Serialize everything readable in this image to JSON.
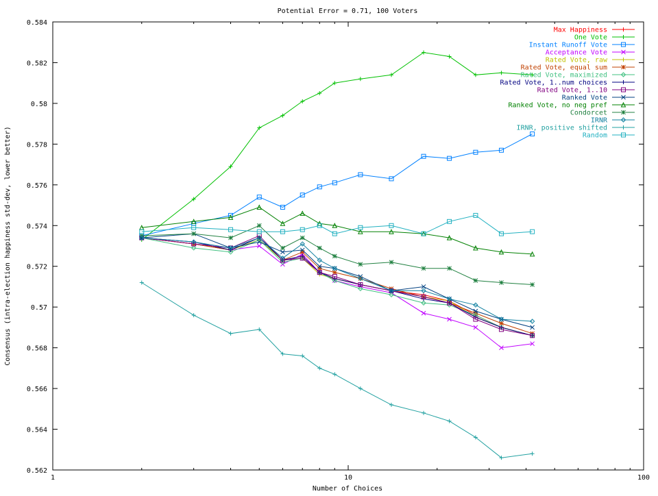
{
  "chart_data": {
    "type": "line",
    "title": "Potential Error = 0.71, 100 Voters",
    "xlabel": "Number of Choices",
    "ylabel": "Consensus (intra-election happiness std-dev, lower better)",
    "xscale": "log",
    "xlim": [
      1,
      100
    ],
    "ylim": [
      0.562,
      0.584
    ],
    "x_ticks": [
      1,
      10,
      100
    ],
    "y_ticks": [
      0.562,
      0.564,
      0.566,
      0.568,
      0.57,
      0.572,
      0.574,
      0.576,
      0.578,
      0.58,
      0.582,
      0.584
    ],
    "y_tick_labels": [
      "0.562",
      "0.564",
      "0.566",
      "0.568",
      "0.57",
      "0.572",
      "0.574",
      "0.576",
      "0.578",
      "0.58",
      "0.582",
      "0.584"
    ],
    "grid": false,
    "legend_position": "top-right",
    "x": [
      2,
      3,
      4,
      5,
      6,
      7,
      8,
      9,
      11,
      14,
      18,
      22,
      27,
      33,
      42
    ],
    "series": [
      {
        "name": "Max Happiness",
        "color": "#ff0000",
        "marker": "plus",
        "values": [
          0.5734,
          0.5731,
          0.5728,
          0.5734,
          0.5723,
          0.5725,
          0.5717,
          0.5714,
          0.5711,
          0.5708,
          0.5706,
          0.5703,
          0.5696,
          0.569,
          0.5686
        ]
      },
      {
        "name": "One Vote",
        "color": "#00c000",
        "marker": "plus",
        "values": [
          0.5733,
          0.5753,
          0.5769,
          0.5788,
          0.5794,
          0.5801,
          0.5805,
          0.581,
          0.5812,
          0.5814,
          0.5825,
          0.5823,
          0.5814,
          0.5815,
          0.5814
        ]
      },
      {
        "name": "Instant Runoff Vote",
        "color": "#0080ff",
        "marker": "square",
        "values": [
          0.5735,
          0.5741,
          0.5745,
          0.5754,
          0.5749,
          0.5755,
          0.5759,
          0.5761,
          0.5765,
          0.5763,
          0.5774,
          0.5773,
          0.5776,
          0.5777,
          0.5785
        ]
      },
      {
        "name": "Acceptance Vote",
        "color": "#c000ff",
        "marker": "x",
        "values": [
          0.5734,
          0.5731,
          0.5728,
          0.573,
          0.5721,
          0.5726,
          0.5717,
          0.5713,
          0.571,
          0.5707,
          0.5697,
          0.5694,
          0.569,
          0.568,
          0.5682
        ]
      },
      {
        "name": "Rated Vote, raw",
        "color": "#c0c000",
        "marker": "plus",
        "values": [
          0.5734,
          0.5731,
          0.5728,
          0.5733,
          0.5723,
          0.5724,
          0.5716,
          0.5714,
          0.5711,
          0.5708,
          0.5705,
          0.5703,
          0.5695,
          0.569,
          0.5686
        ]
      },
      {
        "name": "Rated Vote, equal sum",
        "color": "#c04000",
        "marker": "star",
        "values": [
          0.5734,
          0.5731,
          0.5728,
          0.5734,
          0.5723,
          0.5727,
          0.5719,
          0.5717,
          0.5714,
          0.5709,
          0.5705,
          0.5702,
          0.5697,
          0.5692,
          0.5687
        ]
      },
      {
        "name": "Rated Vote, maximized",
        "color": "#40c080",
        "marker": "diamond",
        "values": [
          0.5734,
          0.5729,
          0.5727,
          0.5733,
          0.5722,
          0.5724,
          0.5717,
          0.5713,
          0.5709,
          0.5706,
          0.5702,
          0.5701,
          0.5696,
          0.569,
          0.5686
        ]
      },
      {
        "name": "Rated Vote, 1..num choices",
        "color": "#000080",
        "marker": "plus",
        "values": [
          0.5734,
          0.5732,
          0.5728,
          0.5734,
          0.5723,
          0.5725,
          0.5717,
          0.5714,
          0.5711,
          0.5708,
          0.5704,
          0.5702,
          0.5695,
          0.569,
          0.5686
        ]
      },
      {
        "name": "Rated Vote, 1..10",
        "color": "#800080",
        "marker": "square",
        "values": [
          0.5734,
          0.5731,
          0.5729,
          0.5735,
          0.5723,
          0.5724,
          0.5717,
          0.5715,
          0.5711,
          0.5708,
          0.5705,
          0.5702,
          0.5694,
          0.5689,
          0.5686
        ]
      },
      {
        "name": "Ranked Vote",
        "color": "#004080",
        "marker": "x",
        "values": [
          0.5734,
          0.5736,
          0.5729,
          0.5732,
          0.5727,
          0.5728,
          0.572,
          0.5719,
          0.5715,
          0.5708,
          0.571,
          0.5704,
          0.5698,
          0.5694,
          0.569
        ]
      },
      {
        "name": "Ranked Vote, no neg pref",
        "color": "#008000",
        "marker": "triangle",
        "values": [
          0.5739,
          0.5742,
          0.5744,
          0.5749,
          0.5741,
          0.5746,
          0.5741,
          0.574,
          0.5737,
          0.5737,
          0.5736,
          0.5734,
          0.5729,
          0.5727,
          0.5726
        ]
      },
      {
        "name": "Condorcet",
        "color": "#208040",
        "marker": "star",
        "values": [
          0.5735,
          0.5736,
          0.5734,
          0.574,
          0.5729,
          0.5734,
          0.5729,
          0.5725,
          0.5721,
          0.5722,
          0.5719,
          0.5719,
          0.5713,
          0.5712,
          0.5711
        ]
      },
      {
        "name": "IRNR",
        "color": "#1080a0",
        "marker": "diamond",
        "values": [
          0.5734,
          0.5732,
          0.5729,
          0.5734,
          0.5724,
          0.5731,
          0.5723,
          0.5719,
          0.5714,
          0.5708,
          0.5708,
          0.5704,
          0.5701,
          0.5694,
          0.5693
        ]
      },
      {
        "name": "IRNR, positive shifted",
        "color": "#20a0a0",
        "marker": "plus",
        "values": [
          0.5712,
          0.5696,
          0.5687,
          0.5689,
          0.5677,
          0.5676,
          0.567,
          0.5667,
          0.566,
          0.5652,
          0.5648,
          0.5644,
          0.5636,
          0.5626,
          0.5628
        ]
      },
      {
        "name": "Random",
        "color": "#20b0c0",
        "marker": "square",
        "values": [
          0.5737,
          0.5739,
          0.5738,
          0.5737,
          0.5737,
          0.5738,
          0.574,
          0.5736,
          0.5739,
          0.574,
          0.5736,
          0.5742,
          0.5745,
          0.5736,
          0.5737
        ]
      }
    ]
  }
}
